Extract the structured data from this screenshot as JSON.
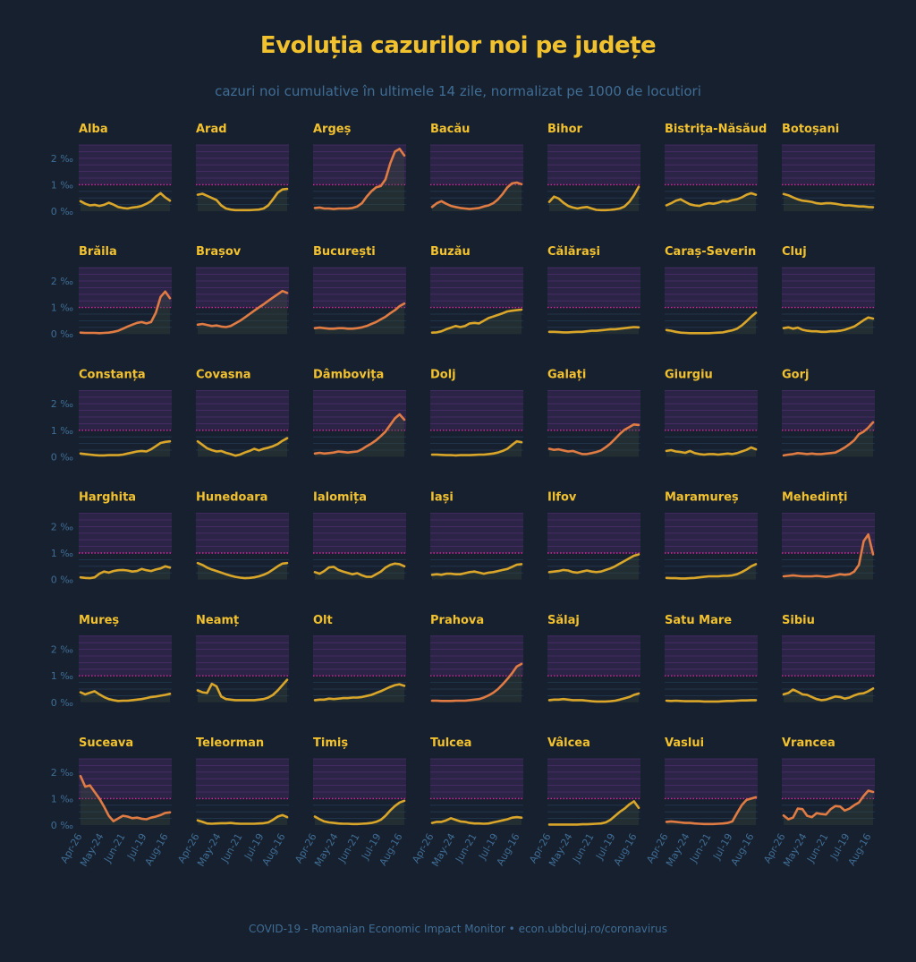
{
  "header": {
    "title": "Evoluția cazurilor noi pe județe",
    "subtitle": "cazuri noi cumulative în ultimele 14 zile, normalizat pe 1000 de locutiori"
  },
  "footer": {
    "text": "COVID-19 - Romanian Economic Impact Monitor • econ.ubbcluj.ro/coronavirus"
  },
  "colors": {
    "background": "#17202f",
    "title": "#f2c12e",
    "line_low": "#d9a62a",
    "line_high": "#e07b43",
    "threshold": "#d4289a",
    "band_high": "#2b2446",
    "axis_text": "#3f6d94"
  },
  "chart_data": {
    "type": "line",
    "facet_layout": "6 rows x 7 columns",
    "grid": true,
    "threshold": 1,
    "y_unit": "‰",
    "ylim": [
      0,
      2.5
    ],
    "y_ticks": [
      "0 ‰",
      "1 ‰",
      "2 ‰"
    ],
    "y_tick_values": [
      0,
      1,
      2
    ],
    "x_ticks": [
      "Apr-26",
      "May-24",
      "Jun-21",
      "Jul-19",
      "Aug-16"
    ],
    "x_range": [
      "Apr-26",
      "Aug-16"
    ],
    "series": [
      {
        "name": "Alba",
        "values": [
          0.38,
          0.28,
          0.22,
          0.24,
          0.2,
          0.24,
          0.32,
          0.25,
          0.16,
          0.12,
          0.1,
          0.14,
          0.16,
          0.2,
          0.28,
          0.38,
          0.55,
          0.68,
          0.52,
          0.4
        ]
      },
      {
        "name": "Arad",
        "values": [
          0.62,
          0.66,
          0.58,
          0.5,
          0.42,
          0.22,
          0.1,
          0.06,
          0.04,
          0.04,
          0.04,
          0.04,
          0.05,
          0.06,
          0.1,
          0.22,
          0.45,
          0.7,
          0.82,
          0.84
        ]
      },
      {
        "name": "Argeș",
        "values": [
          0.12,
          0.14,
          0.1,
          0.1,
          0.08,
          0.1,
          0.1,
          0.1,
          0.12,
          0.18,
          0.3,
          0.55,
          0.75,
          0.9,
          0.95,
          1.2,
          1.8,
          2.25,
          2.35,
          2.1
        ]
      },
      {
        "name": "Bacău",
        "values": [
          0.16,
          0.3,
          0.38,
          0.28,
          0.2,
          0.16,
          0.12,
          0.1,
          0.08,
          0.1,
          0.12,
          0.18,
          0.22,
          0.3,
          0.45,
          0.65,
          0.9,
          1.05,
          1.08,
          1.02
        ]
      },
      {
        "name": "Bihor",
        "values": [
          0.35,
          0.55,
          0.48,
          0.32,
          0.2,
          0.14,
          0.1,
          0.14,
          0.16,
          0.1,
          0.05,
          0.04,
          0.04,
          0.05,
          0.07,
          0.1,
          0.18,
          0.35,
          0.6,
          0.92
        ]
      },
      {
        "name": "Bistrița-Năsăud",
        "values": [
          0.22,
          0.3,
          0.4,
          0.45,
          0.35,
          0.26,
          0.22,
          0.2,
          0.26,
          0.3,
          0.28,
          0.32,
          0.38,
          0.36,
          0.42,
          0.45,
          0.52,
          0.62,
          0.68,
          0.62
        ]
      },
      {
        "name": "Botoșani",
        "values": [
          0.65,
          0.6,
          0.52,
          0.45,
          0.4,
          0.38,
          0.35,
          0.3,
          0.28,
          0.3,
          0.3,
          0.28,
          0.25,
          0.22,
          0.22,
          0.2,
          0.18,
          0.18,
          0.16,
          0.15
        ]
      },
      {
        "name": "Brăila",
        "values": [
          0.05,
          0.04,
          0.04,
          0.04,
          0.03,
          0.04,
          0.05,
          0.08,
          0.12,
          0.2,
          0.28,
          0.35,
          0.42,
          0.45,
          0.4,
          0.45,
          0.8,
          1.4,
          1.6,
          1.35
        ]
      },
      {
        "name": "Brașov",
        "values": [
          0.35,
          0.38,
          0.34,
          0.3,
          0.32,
          0.28,
          0.26,
          0.3,
          0.4,
          0.5,
          0.62,
          0.75,
          0.88,
          1.0,
          1.12,
          1.25,
          1.38,
          1.5,
          1.62,
          1.55
        ]
      },
      {
        "name": "București",
        "values": [
          0.22,
          0.24,
          0.22,
          0.2,
          0.2,
          0.22,
          0.22,
          0.2,
          0.2,
          0.22,
          0.25,
          0.3,
          0.38,
          0.45,
          0.55,
          0.65,
          0.78,
          0.9,
          1.05,
          1.15
        ]
      },
      {
        "name": "Buzău",
        "values": [
          0.05,
          0.06,
          0.1,
          0.18,
          0.24,
          0.3,
          0.26,
          0.3,
          0.4,
          0.42,
          0.4,
          0.5,
          0.6,
          0.66,
          0.72,
          0.78,
          0.85,
          0.88,
          0.9,
          0.92
        ]
      },
      {
        "name": "Călărași",
        "values": [
          0.08,
          0.08,
          0.07,
          0.06,
          0.06,
          0.07,
          0.08,
          0.08,
          0.1,
          0.12,
          0.12,
          0.14,
          0.16,
          0.18,
          0.18,
          0.2,
          0.22,
          0.24,
          0.26,
          0.25
        ]
      },
      {
        "name": "Caraș-Severin",
        "values": [
          0.15,
          0.12,
          0.08,
          0.05,
          0.04,
          0.03,
          0.03,
          0.03,
          0.03,
          0.03,
          0.04,
          0.05,
          0.06,
          0.1,
          0.14,
          0.2,
          0.32,
          0.48,
          0.65,
          0.8
        ]
      },
      {
        "name": "Cluj",
        "values": [
          0.22,
          0.25,
          0.2,
          0.24,
          0.16,
          0.12,
          0.1,
          0.1,
          0.08,
          0.08,
          0.1,
          0.1,
          0.12,
          0.16,
          0.22,
          0.28,
          0.4,
          0.52,
          0.62,
          0.58
        ]
      },
      {
        "name": "Constanța",
        "values": [
          0.12,
          0.1,
          0.08,
          0.06,
          0.05,
          0.05,
          0.06,
          0.06,
          0.06,
          0.08,
          0.12,
          0.16,
          0.2,
          0.22,
          0.2,
          0.28,
          0.4,
          0.52,
          0.56,
          0.58
        ]
      },
      {
        "name": "Covasna",
        "values": [
          0.58,
          0.45,
          0.32,
          0.25,
          0.2,
          0.22,
          0.15,
          0.1,
          0.04,
          0.08,
          0.16,
          0.22,
          0.3,
          0.24,
          0.3,
          0.34,
          0.4,
          0.48,
          0.6,
          0.7
        ]
      },
      {
        "name": "Dâmbovița",
        "values": [
          0.12,
          0.15,
          0.12,
          0.14,
          0.16,
          0.2,
          0.18,
          0.16,
          0.18,
          0.2,
          0.28,
          0.4,
          0.5,
          0.62,
          0.78,
          0.95,
          1.2,
          1.45,
          1.6,
          1.4
        ]
      },
      {
        "name": "Dolj",
        "values": [
          0.08,
          0.08,
          0.07,
          0.06,
          0.06,
          0.05,
          0.06,
          0.06,
          0.06,
          0.07,
          0.08,
          0.08,
          0.1,
          0.12,
          0.16,
          0.22,
          0.3,
          0.45,
          0.58,
          0.55
        ]
      },
      {
        "name": "Galați",
        "values": [
          0.3,
          0.26,
          0.28,
          0.24,
          0.2,
          0.22,
          0.16,
          0.1,
          0.1,
          0.14,
          0.18,
          0.24,
          0.36,
          0.5,
          0.68,
          0.86,
          1.02,
          1.12,
          1.22,
          1.2
        ]
      },
      {
        "name": "Giurgiu",
        "values": [
          0.22,
          0.25,
          0.2,
          0.18,
          0.15,
          0.22,
          0.14,
          0.1,
          0.08,
          0.1,
          0.1,
          0.08,
          0.1,
          0.12,
          0.1,
          0.14,
          0.2,
          0.26,
          0.35,
          0.28
        ]
      },
      {
        "name": "Gorj",
        "values": [
          0.05,
          0.08,
          0.1,
          0.14,
          0.12,
          0.1,
          0.12,
          0.1,
          0.1,
          0.12,
          0.14,
          0.16,
          0.25,
          0.35,
          0.48,
          0.62,
          0.85,
          0.95,
          1.1,
          1.3
        ]
      },
      {
        "name": "Harghita",
        "values": [
          0.08,
          0.06,
          0.05,
          0.08,
          0.22,
          0.3,
          0.26,
          0.32,
          0.35,
          0.36,
          0.34,
          0.3,
          0.32,
          0.4,
          0.35,
          0.32,
          0.38,
          0.42,
          0.5,
          0.45
        ]
      },
      {
        "name": "Hunedoara",
        "values": [
          0.62,
          0.55,
          0.45,
          0.38,
          0.32,
          0.26,
          0.2,
          0.15,
          0.1,
          0.07,
          0.05,
          0.06,
          0.08,
          0.12,
          0.18,
          0.26,
          0.38,
          0.5,
          0.6,
          0.62
        ]
      },
      {
        "name": "Ialomița",
        "values": [
          0.28,
          0.22,
          0.32,
          0.46,
          0.48,
          0.36,
          0.3,
          0.25,
          0.2,
          0.24,
          0.16,
          0.1,
          0.1,
          0.2,
          0.3,
          0.45,
          0.55,
          0.6,
          0.58,
          0.5
        ]
      },
      {
        "name": "Iași",
        "values": [
          0.18,
          0.2,
          0.18,
          0.22,
          0.22,
          0.2,
          0.2,
          0.24,
          0.28,
          0.3,
          0.26,
          0.22,
          0.26,
          0.28,
          0.32,
          0.36,
          0.4,
          0.48,
          0.56,
          0.58
        ]
      },
      {
        "name": "Ilfov",
        "values": [
          0.28,
          0.3,
          0.32,
          0.36,
          0.34,
          0.28,
          0.26,
          0.3,
          0.34,
          0.3,
          0.28,
          0.3,
          0.36,
          0.42,
          0.5,
          0.6,
          0.7,
          0.8,
          0.9,
          0.95
        ]
      },
      {
        "name": "Maramureș",
        "values": [
          0.06,
          0.05,
          0.05,
          0.04,
          0.04,
          0.05,
          0.06,
          0.08,
          0.1,
          0.12,
          0.12,
          0.12,
          0.14,
          0.14,
          0.16,
          0.2,
          0.28,
          0.38,
          0.5,
          0.58
        ]
      },
      {
        "name": "Mehedinți",
        "values": [
          0.12,
          0.14,
          0.16,
          0.14,
          0.12,
          0.12,
          0.12,
          0.14,
          0.12,
          0.1,
          0.12,
          0.16,
          0.2,
          0.18,
          0.2,
          0.3,
          0.55,
          1.45,
          1.7,
          0.95
        ]
      },
      {
        "name": "Mureș",
        "values": [
          0.38,
          0.3,
          0.36,
          0.42,
          0.3,
          0.2,
          0.12,
          0.08,
          0.05,
          0.06,
          0.06,
          0.08,
          0.1,
          0.12,
          0.16,
          0.2,
          0.22,
          0.25,
          0.28,
          0.32
        ]
      },
      {
        "name": "Neamț",
        "values": [
          0.45,
          0.38,
          0.35,
          0.7,
          0.6,
          0.22,
          0.12,
          0.1,
          0.08,
          0.08,
          0.08,
          0.08,
          0.08,
          0.1,
          0.12,
          0.18,
          0.28,
          0.45,
          0.65,
          0.85
        ]
      },
      {
        "name": "Olt",
        "values": [
          0.08,
          0.1,
          0.1,
          0.14,
          0.12,
          0.14,
          0.16,
          0.16,
          0.18,
          0.18,
          0.2,
          0.24,
          0.28,
          0.35,
          0.42,
          0.5,
          0.58,
          0.65,
          0.68,
          0.62
        ]
      },
      {
        "name": "Prahova",
        "values": [
          0.06,
          0.06,
          0.05,
          0.05,
          0.05,
          0.06,
          0.06,
          0.06,
          0.08,
          0.1,
          0.12,
          0.18,
          0.26,
          0.36,
          0.5,
          0.68,
          0.88,
          1.1,
          1.35,
          1.45
        ]
      },
      {
        "name": "Sălaj",
        "values": [
          0.08,
          0.1,
          0.1,
          0.12,
          0.1,
          0.08,
          0.08,
          0.08,
          0.06,
          0.04,
          0.03,
          0.03,
          0.03,
          0.04,
          0.06,
          0.1,
          0.15,
          0.2,
          0.28,
          0.33
        ]
      },
      {
        "name": "Satu Mare",
        "values": [
          0.06,
          0.05,
          0.06,
          0.05,
          0.04,
          0.04,
          0.04,
          0.04,
          0.03,
          0.03,
          0.03,
          0.03,
          0.04,
          0.05,
          0.05,
          0.06,
          0.07,
          0.07,
          0.08,
          0.08
        ]
      },
      {
        "name": "Sibiu",
        "values": [
          0.3,
          0.35,
          0.48,
          0.4,
          0.3,
          0.28,
          0.2,
          0.12,
          0.08,
          0.1,
          0.16,
          0.22,
          0.2,
          0.14,
          0.18,
          0.26,
          0.32,
          0.34,
          0.42,
          0.52
        ]
      },
      {
        "name": "Suceava",
        "values": [
          1.85,
          1.45,
          1.5,
          1.25,
          1.0,
          0.7,
          0.35,
          0.15,
          0.25,
          0.35,
          0.32,
          0.26,
          0.28,
          0.24,
          0.22,
          0.28,
          0.32,
          0.38,
          0.46,
          0.48
        ]
      },
      {
        "name": "Teleorman",
        "values": [
          0.18,
          0.12,
          0.06,
          0.05,
          0.06,
          0.07,
          0.07,
          0.08,
          0.06,
          0.05,
          0.05,
          0.05,
          0.05,
          0.06,
          0.07,
          0.1,
          0.2,
          0.32,
          0.38,
          0.3
        ]
      },
      {
        "name": "Timiș",
        "values": [
          0.32,
          0.22,
          0.14,
          0.1,
          0.08,
          0.06,
          0.05,
          0.05,
          0.04,
          0.04,
          0.05,
          0.06,
          0.08,
          0.12,
          0.2,
          0.35,
          0.55,
          0.72,
          0.85,
          0.92
        ]
      },
      {
        "name": "Tulcea",
        "values": [
          0.08,
          0.12,
          0.12,
          0.18,
          0.26,
          0.2,
          0.14,
          0.12,
          0.08,
          0.06,
          0.06,
          0.05,
          0.06,
          0.1,
          0.14,
          0.18,
          0.22,
          0.28,
          0.3,
          0.28
        ]
      },
      {
        "name": "Vâlcea",
        "values": [
          0.02,
          0.02,
          0.02,
          0.02,
          0.02,
          0.02,
          0.02,
          0.03,
          0.03,
          0.04,
          0.05,
          0.06,
          0.1,
          0.2,
          0.35,
          0.5,
          0.62,
          0.78,
          0.9,
          0.65
        ]
      },
      {
        "name": "Vaslui",
        "values": [
          0.12,
          0.14,
          0.12,
          0.1,
          0.08,
          0.08,
          0.06,
          0.05,
          0.04,
          0.04,
          0.04,
          0.05,
          0.06,
          0.08,
          0.14,
          0.45,
          0.75,
          0.95,
          1.0,
          1.05
        ]
      },
      {
        "name": "Vrancea",
        "values": [
          0.36,
          0.22,
          0.28,
          0.62,
          0.6,
          0.35,
          0.3,
          0.45,
          0.42,
          0.4,
          0.6,
          0.72,
          0.7,
          0.55,
          0.62,
          0.75,
          0.85,
          1.1,
          1.3,
          1.25
        ]
      }
    ]
  }
}
